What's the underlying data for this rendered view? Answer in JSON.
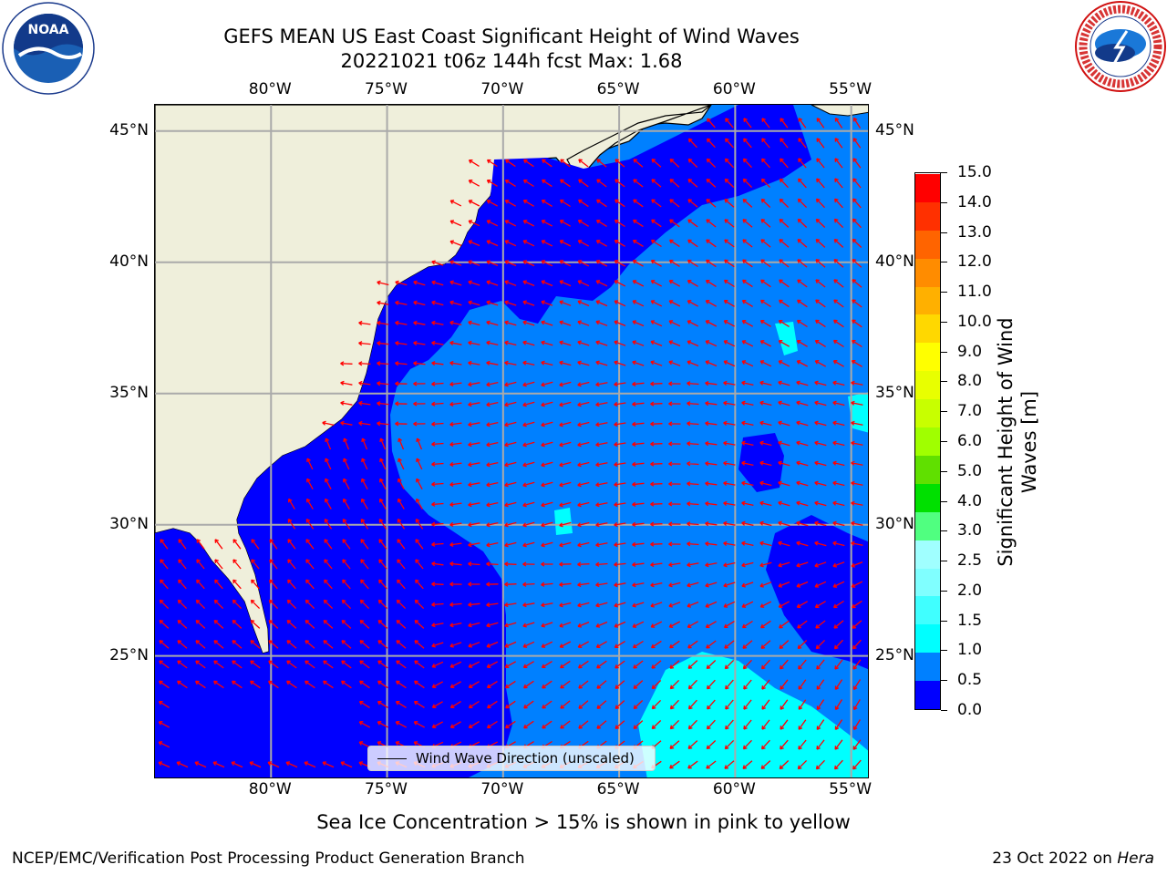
{
  "title": {
    "line1": "GEFS MEAN US East Coast Significant Height of Wind Waves",
    "line2": "20221021 t06z 144h fcst   Max: 1.68"
  },
  "logos": {
    "left": {
      "name": "noaa-logo",
      "text": "NOAA"
    },
    "right": {
      "name": "nws-logo",
      "text": "NATIONAL WEATHER SERVICE"
    }
  },
  "map": {
    "lon_ticks_top": [
      "80°W",
      "75°W",
      "70°W",
      "65°W",
      "60°W",
      "55°W"
    ],
    "lon_ticks_bottom": [
      "80°W",
      "75°W",
      "70°W",
      "65°W",
      "60°W",
      "55°W"
    ],
    "lat_ticks_left": [
      "45°N",
      "40°N",
      "35°N",
      "30°N",
      "25°N"
    ],
    "lat_ticks_right": [
      "45°N",
      "40°N",
      "35°N",
      "30°N",
      "25°N"
    ],
    "lon_values": [
      -80,
      -75,
      -70,
      -65,
      -60,
      -55
    ],
    "lat_values": [
      45,
      40,
      35,
      30,
      25
    ],
    "extent": {
      "lon_min": -85,
      "lon_max": -54.2,
      "lat_min": 20.3,
      "lat_max": 46
    },
    "grid": true,
    "colors": {
      "land": "#efefdb",
      "ocean_0_0_5": "#0000ff",
      "ocean_0_5_1": "#0080ff",
      "ocean_1_1_5": "#00ffff",
      "arrows": "#ff0000",
      "grid": "#aaaaaa"
    },
    "legend": {
      "label": "Wind Wave Direction (unscaled)",
      "placement": "lower-center"
    }
  },
  "colorbar": {
    "title": "Significant Height of Wind Waves [m]",
    "labels": [
      "0.0",
      "0.5",
      "1.0",
      "1.5",
      "2.0",
      "2.5",
      "3.0",
      "4.0",
      "5.0",
      "6.0",
      "7.0",
      "8.0",
      "9.0",
      "10.0",
      "11.0",
      "12.0",
      "13.0",
      "14.0",
      "15.0"
    ],
    "colors": [
      "#0000ff",
      "#0080ff",
      "#00ffff",
      "#40ffff",
      "#80ffff",
      "#a0ffff",
      "#50ff80",
      "#00e000",
      "#60e000",
      "#a0ff00",
      "#c8ff00",
      "#e8ff00",
      "#ffff00",
      "#ffd800",
      "#ffb000",
      "#ff8c00",
      "#ff6400",
      "#ff3000",
      "#ff0000"
    ]
  },
  "ice_note": "Sea Ice Concentration > 15% is shown in pink to yellow",
  "footer": {
    "left": "NCEP/EMC/Verification Post Processing Product Generation Branch",
    "right_date": "23 Oct 2022 on ",
    "right_host": "Hera"
  }
}
